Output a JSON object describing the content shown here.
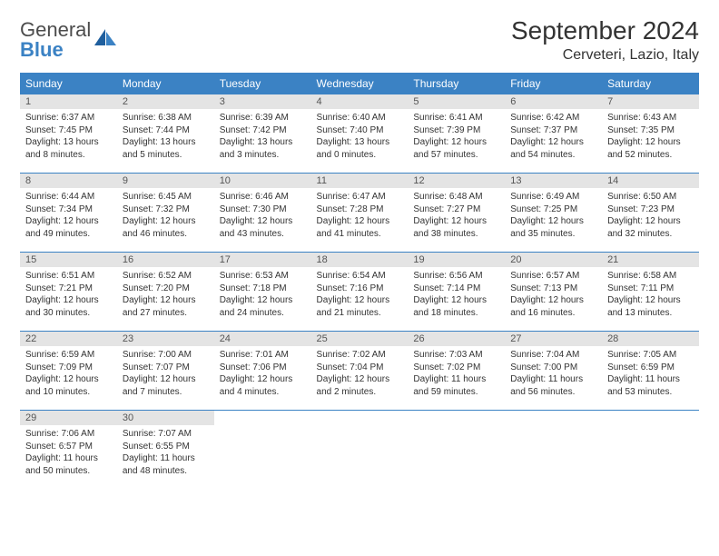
{
  "colors": {
    "header_bg": "#3b82c4",
    "header_text": "#ffffff",
    "daynum_bg": "#e4e4e4",
    "daynum_text": "#555555",
    "body_text": "#333333",
    "row_border": "#3b82c4",
    "page_bg": "#ffffff",
    "logo_gray": "#4c4c4c",
    "logo_blue": "#3b82c4"
  },
  "logo": {
    "word1": "General",
    "word2": "Blue"
  },
  "title": "September 2024",
  "location": "Cerveteri, Lazio, Italy",
  "weekdays": [
    "Sunday",
    "Monday",
    "Tuesday",
    "Wednesday",
    "Thursday",
    "Friday",
    "Saturday"
  ],
  "weeks": [
    [
      {
        "n": "1",
        "sr": "Sunrise: 6:37 AM",
        "ss": "Sunset: 7:45 PM",
        "dl": "Daylight: 13 hours and 8 minutes."
      },
      {
        "n": "2",
        "sr": "Sunrise: 6:38 AM",
        "ss": "Sunset: 7:44 PM",
        "dl": "Daylight: 13 hours and 5 minutes."
      },
      {
        "n": "3",
        "sr": "Sunrise: 6:39 AM",
        "ss": "Sunset: 7:42 PM",
        "dl": "Daylight: 13 hours and 3 minutes."
      },
      {
        "n": "4",
        "sr": "Sunrise: 6:40 AM",
        "ss": "Sunset: 7:40 PM",
        "dl": "Daylight: 13 hours and 0 minutes."
      },
      {
        "n": "5",
        "sr": "Sunrise: 6:41 AM",
        "ss": "Sunset: 7:39 PM",
        "dl": "Daylight: 12 hours and 57 minutes."
      },
      {
        "n": "6",
        "sr": "Sunrise: 6:42 AM",
        "ss": "Sunset: 7:37 PM",
        "dl": "Daylight: 12 hours and 54 minutes."
      },
      {
        "n": "7",
        "sr": "Sunrise: 6:43 AM",
        "ss": "Sunset: 7:35 PM",
        "dl": "Daylight: 12 hours and 52 minutes."
      }
    ],
    [
      {
        "n": "8",
        "sr": "Sunrise: 6:44 AM",
        "ss": "Sunset: 7:34 PM",
        "dl": "Daylight: 12 hours and 49 minutes."
      },
      {
        "n": "9",
        "sr": "Sunrise: 6:45 AM",
        "ss": "Sunset: 7:32 PM",
        "dl": "Daylight: 12 hours and 46 minutes."
      },
      {
        "n": "10",
        "sr": "Sunrise: 6:46 AM",
        "ss": "Sunset: 7:30 PM",
        "dl": "Daylight: 12 hours and 43 minutes."
      },
      {
        "n": "11",
        "sr": "Sunrise: 6:47 AM",
        "ss": "Sunset: 7:28 PM",
        "dl": "Daylight: 12 hours and 41 minutes."
      },
      {
        "n": "12",
        "sr": "Sunrise: 6:48 AM",
        "ss": "Sunset: 7:27 PM",
        "dl": "Daylight: 12 hours and 38 minutes."
      },
      {
        "n": "13",
        "sr": "Sunrise: 6:49 AM",
        "ss": "Sunset: 7:25 PM",
        "dl": "Daylight: 12 hours and 35 minutes."
      },
      {
        "n": "14",
        "sr": "Sunrise: 6:50 AM",
        "ss": "Sunset: 7:23 PM",
        "dl": "Daylight: 12 hours and 32 minutes."
      }
    ],
    [
      {
        "n": "15",
        "sr": "Sunrise: 6:51 AM",
        "ss": "Sunset: 7:21 PM",
        "dl": "Daylight: 12 hours and 30 minutes."
      },
      {
        "n": "16",
        "sr": "Sunrise: 6:52 AM",
        "ss": "Sunset: 7:20 PM",
        "dl": "Daylight: 12 hours and 27 minutes."
      },
      {
        "n": "17",
        "sr": "Sunrise: 6:53 AM",
        "ss": "Sunset: 7:18 PM",
        "dl": "Daylight: 12 hours and 24 minutes."
      },
      {
        "n": "18",
        "sr": "Sunrise: 6:54 AM",
        "ss": "Sunset: 7:16 PM",
        "dl": "Daylight: 12 hours and 21 minutes."
      },
      {
        "n": "19",
        "sr": "Sunrise: 6:56 AM",
        "ss": "Sunset: 7:14 PM",
        "dl": "Daylight: 12 hours and 18 minutes."
      },
      {
        "n": "20",
        "sr": "Sunrise: 6:57 AM",
        "ss": "Sunset: 7:13 PM",
        "dl": "Daylight: 12 hours and 16 minutes."
      },
      {
        "n": "21",
        "sr": "Sunrise: 6:58 AM",
        "ss": "Sunset: 7:11 PM",
        "dl": "Daylight: 12 hours and 13 minutes."
      }
    ],
    [
      {
        "n": "22",
        "sr": "Sunrise: 6:59 AM",
        "ss": "Sunset: 7:09 PM",
        "dl": "Daylight: 12 hours and 10 minutes."
      },
      {
        "n": "23",
        "sr": "Sunrise: 7:00 AM",
        "ss": "Sunset: 7:07 PM",
        "dl": "Daylight: 12 hours and 7 minutes."
      },
      {
        "n": "24",
        "sr": "Sunrise: 7:01 AM",
        "ss": "Sunset: 7:06 PM",
        "dl": "Daylight: 12 hours and 4 minutes."
      },
      {
        "n": "25",
        "sr": "Sunrise: 7:02 AM",
        "ss": "Sunset: 7:04 PM",
        "dl": "Daylight: 12 hours and 2 minutes."
      },
      {
        "n": "26",
        "sr": "Sunrise: 7:03 AM",
        "ss": "Sunset: 7:02 PM",
        "dl": "Daylight: 11 hours and 59 minutes."
      },
      {
        "n": "27",
        "sr": "Sunrise: 7:04 AM",
        "ss": "Sunset: 7:00 PM",
        "dl": "Daylight: 11 hours and 56 minutes."
      },
      {
        "n": "28",
        "sr": "Sunrise: 7:05 AM",
        "ss": "Sunset: 6:59 PM",
        "dl": "Daylight: 11 hours and 53 minutes."
      }
    ],
    [
      {
        "n": "29",
        "sr": "Sunrise: 7:06 AM",
        "ss": "Sunset: 6:57 PM",
        "dl": "Daylight: 11 hours and 50 minutes."
      },
      {
        "n": "30",
        "sr": "Sunrise: 7:07 AM",
        "ss": "Sunset: 6:55 PM",
        "dl": "Daylight: 11 hours and 48 minutes."
      },
      null,
      null,
      null,
      null,
      null
    ]
  ]
}
